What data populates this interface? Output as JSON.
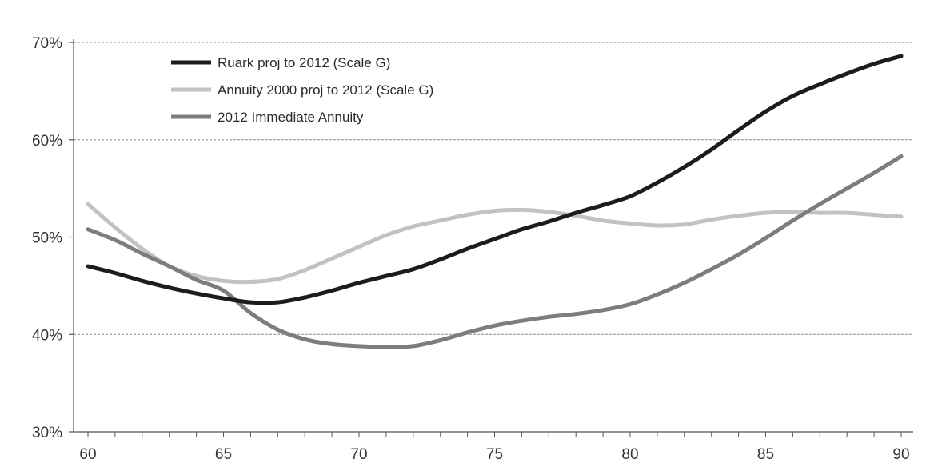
{
  "colors": {
    "background": "#ffffff",
    "gridline": "#8a8a8a",
    "axis": "#555555",
    "text": "#333333"
  },
  "chart_data": {
    "type": "line",
    "title": "",
    "xlabel": "",
    "ylabel": "",
    "xlim": [
      60,
      90
    ],
    "ylim": [
      30,
      70
    ],
    "x_ticks": [
      60,
      65,
      70,
      75,
      80,
      85,
      90
    ],
    "x_tick_labels": [
      "60",
      "65",
      "70",
      "75",
      "80",
      "85",
      "90"
    ],
    "y_ticks": [
      30,
      40,
      50,
      60,
      70
    ],
    "y_tick_labels": [
      "30%",
      "40%",
      "50%",
      "60%",
      "70%"
    ],
    "grid": "horizontal dashed",
    "legend_position": "top-left",
    "x": [
      60,
      61,
      62,
      63,
      64,
      65,
      66,
      67,
      68,
      69,
      70,
      71,
      72,
      73,
      74,
      75,
      76,
      77,
      78,
      79,
      80,
      81,
      82,
      83,
      84,
      85,
      86,
      87,
      88,
      89,
      90
    ],
    "series": [
      {
        "name": "Ruark proj to 2012 (Scale G)",
        "color": "#1c1c1c",
        "values": [
          47.0,
          46.3,
          45.5,
          44.8,
          44.2,
          43.7,
          43.3,
          43.3,
          43.8,
          44.5,
          45.3,
          46.0,
          46.7,
          47.7,
          48.8,
          49.8,
          50.8,
          51.6,
          52.5,
          53.3,
          54.2,
          55.6,
          57.2,
          59.0,
          61.0,
          62.9,
          64.5,
          65.7,
          66.8,
          67.8,
          68.6
        ]
      },
      {
        "name": "Annuity 2000 proj to 2012 (Scale G)",
        "color": "#c2c2c2",
        "values": [
          53.4,
          51.0,
          48.8,
          47.0,
          46.0,
          45.5,
          45.4,
          45.7,
          46.6,
          47.8,
          49.0,
          50.2,
          51.1,
          51.7,
          52.3,
          52.7,
          52.8,
          52.6,
          52.2,
          51.7,
          51.4,
          51.2,
          51.3,
          51.8,
          52.2,
          52.5,
          52.6,
          52.5,
          52.5,
          52.3,
          52.1
        ]
      },
      {
        "name": "2012 Immediate Annuity",
        "color": "#7d7d7d",
        "values": [
          50.8,
          49.7,
          48.3,
          47.0,
          45.6,
          44.5,
          42.2,
          40.5,
          39.5,
          39.0,
          38.8,
          38.7,
          38.8,
          39.4,
          40.2,
          40.9,
          41.4,
          41.8,
          42.1,
          42.5,
          43.1,
          44.1,
          45.3,
          46.7,
          48.2,
          49.9,
          51.7,
          53.4,
          55.0,
          56.6,
          58.3
        ]
      }
    ]
  }
}
